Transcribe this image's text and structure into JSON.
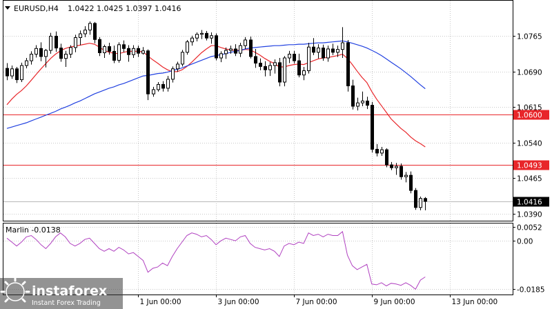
{
  "chart_data": [
    {
      "type": "candlestick",
      "symbol": "EURUSD,H4",
      "ohlc_header": {
        "open": "1.0422",
        "high": "1.0425",
        "low": "1.0397",
        "close": "1.0416"
      },
      "ylim": [
        1.0375,
        1.084
      ],
      "y_tick_labels": [
        "1.0765",
        "1.0690",
        "1.0615",
        "1.0540",
        "1.0465",
        "1.0390"
      ],
      "y_tick_values": [
        1.0765,
        1.069,
        1.0615,
        1.054,
        1.0465,
        1.039
      ],
      "x_tick_labels": [
        "1 Jun 00:00",
        "3 Jun 00:00",
        "7 Jun 00:00",
        "9 Jun 00:00",
        "13 Jun 00:00"
      ],
      "x_tick_bar_index": [
        27,
        43,
        59,
        75,
        91
      ],
      "horizontal_levels": [
        {
          "value": 1.06,
          "label": "1.0600",
          "color": "#e8262a"
        },
        {
          "value": 1.0493,
          "label": "1.0493",
          "color": "#e8262a"
        }
      ],
      "current_price": {
        "value": 1.0416,
        "label": "1.0416",
        "color": "#000000"
      },
      "candles": [
        [
          1.0697,
          1.0708,
          1.0672,
          1.0681
        ],
        [
          1.0681,
          1.0703,
          1.0675,
          1.0696
        ],
        [
          1.0696,
          1.07,
          1.0666,
          1.0673
        ],
        [
          1.0673,
          1.0709,
          1.0668,
          1.0703
        ],
        [
          1.0703,
          1.0719,
          1.0697,
          1.0713
        ],
        [
          1.0713,
          1.0733,
          1.0705,
          1.0727
        ],
        [
          1.0727,
          1.0746,
          1.072,
          1.0739
        ],
        [
          1.0739,
          1.0752,
          1.0712,
          1.0722
        ],
        [
          1.0722,
          1.0738,
          1.0699,
          1.0735
        ],
        [
          1.0735,
          1.0772,
          1.0728,
          1.0765
        ],
        [
          1.0765,
          1.0775,
          1.0732,
          1.074
        ],
        [
          1.074,
          1.0749,
          1.0711,
          1.0718
        ],
        [
          1.0718,
          1.0734,
          1.07,
          1.0727
        ],
        [
          1.0727,
          1.0746,
          1.0719,
          1.0741
        ],
        [
          1.0741,
          1.0768,
          1.0731,
          1.0762
        ],
        [
          1.0762,
          1.0777,
          1.0746,
          1.077
        ],
        [
          1.077,
          1.0786,
          1.0763,
          1.0778
        ],
        [
          1.0778,
          1.0796,
          1.0768,
          1.0792
        ],
        [
          1.0792,
          1.0795,
          1.075,
          1.0758
        ],
        [
          1.0758,
          1.0763,
          1.0723,
          1.073
        ],
        [
          1.073,
          1.0747,
          1.0719,
          1.0743
        ],
        [
          1.0743,
          1.0751,
          1.0726,
          1.0733
        ],
        [
          1.0733,
          1.0745,
          1.0708,
          1.0714
        ],
        [
          1.0714,
          1.0752,
          1.0709,
          1.0747
        ],
        [
          1.0747,
          1.0756,
          1.0731,
          1.0739
        ],
        [
          1.0739,
          1.0746,
          1.0711,
          1.0726
        ],
        [
          1.0726,
          1.0746,
          1.0719,
          1.0739
        ],
        [
          1.0739,
          1.0745,
          1.0721,
          1.0729
        ],
        [
          1.0729,
          1.0742,
          1.0726,
          1.0734
        ],
        [
          1.0734,
          1.0737,
          1.063,
          1.0643
        ],
        [
          1.0643,
          1.0658,
          1.0637,
          1.0652
        ],
        [
          1.0652,
          1.0668,
          1.0648,
          1.0663
        ],
        [
          1.0663,
          1.067,
          1.0648,
          1.0655
        ],
        [
          1.0655,
          1.0681,
          1.0648,
          1.0674
        ],
        [
          1.0674,
          1.0701,
          1.0667,
          1.0696
        ],
        [
          1.0696,
          1.0711,
          1.069,
          1.0706
        ],
        [
          1.0706,
          1.0736,
          1.0701,
          1.0731
        ],
        [
          1.0731,
          1.0757,
          1.0726,
          1.0753
        ],
        [
          1.0753,
          1.0766,
          1.0745,
          1.0761
        ],
        [
          1.0761,
          1.0773,
          1.0754,
          1.0769
        ],
        [
          1.0769,
          1.0778,
          1.0759,
          1.0771
        ],
        [
          1.0771,
          1.0776,
          1.0756,
          1.0761
        ],
        [
          1.0761,
          1.0773,
          1.0749,
          1.0766
        ],
        [
          1.0766,
          1.0771,
          1.0714,
          1.0719
        ],
        [
          1.0719,
          1.0733,
          1.071,
          1.0728
        ],
        [
          1.0728,
          1.0741,
          1.0717,
          1.0735
        ],
        [
          1.0735,
          1.0745,
          1.0728,
          1.0738
        ],
        [
          1.0738,
          1.0748,
          1.0723,
          1.0729
        ],
        [
          1.0729,
          1.0751,
          1.0721,
          1.0745
        ],
        [
          1.0745,
          1.0763,
          1.0738,
          1.0757
        ],
        [
          1.0757,
          1.0764,
          1.0718,
          1.0722
        ],
        [
          1.0722,
          1.0738,
          1.0698,
          1.0708
        ],
        [
          1.0708,
          1.0718,
          1.0693,
          1.0701
        ],
        [
          1.0701,
          1.0712,
          1.068,
          1.0694
        ],
        [
          1.0694,
          1.071,
          1.0681,
          1.0703
        ],
        [
          1.0703,
          1.0716,
          1.0686,
          1.0709
        ],
        [
          1.0709,
          1.0719,
          1.0659,
          1.0668
        ],
        [
          1.0668,
          1.0723,
          1.0659,
          1.0719
        ],
        [
          1.0719,
          1.0734,
          1.0708,
          1.0727
        ],
        [
          1.0727,
          1.0734,
          1.0707,
          1.0713
        ],
        [
          1.0713,
          1.0728,
          1.0678,
          1.0683
        ],
        [
          1.0683,
          1.07,
          1.0672,
          1.0692
        ],
        [
          1.0692,
          1.0751,
          1.0686,
          1.0742
        ],
        [
          1.0742,
          1.0761,
          1.0725,
          1.0731
        ],
        [
          1.0731,
          1.0748,
          1.0718,
          1.074
        ],
        [
          1.074,
          1.0747,
          1.0713,
          1.0719
        ],
        [
          1.0719,
          1.0745,
          1.0711,
          1.0738
        ],
        [
          1.0738,
          1.0749,
          1.0725,
          1.0731
        ],
        [
          1.0731,
          1.0745,
          1.0721,
          1.0737
        ],
        [
          1.0737,
          1.0784,
          1.0719,
          1.0751
        ],
        [
          1.0751,
          1.0757,
          1.0648,
          1.066
        ],
        [
          1.066,
          1.0673,
          1.061,
          1.0617
        ],
        [
          1.0617,
          1.0635,
          1.0608,
          1.0624
        ],
        [
          1.0624,
          1.0648,
          1.0617,
          1.0628
        ],
        [
          1.0628,
          1.0637,
          1.0611,
          1.0619
        ],
        [
          1.0619,
          1.0626,
          1.0519,
          1.0526
        ],
        [
          1.0526,
          1.0537,
          1.0511,
          1.0518
        ],
        [
          1.0518,
          1.0531,
          1.0512,
          1.0525
        ],
        [
          1.0525,
          1.0528,
          1.0488,
          1.0493
        ],
        [
          1.0493,
          1.0499,
          1.0482,
          1.0487
        ],
        [
          1.0487,
          1.0497,
          1.0472,
          1.049
        ],
        [
          1.049,
          1.0496,
          1.0462,
          1.0468
        ],
        [
          1.0468,
          1.0478,
          1.0456,
          1.0471
        ],
        [
          1.0471,
          1.0479,
          1.0433,
          1.0439
        ],
        [
          1.0439,
          1.0444,
          1.0398,
          1.0403
        ],
        [
          1.0403,
          1.0426,
          1.0397,
          1.0422
        ],
        [
          1.0422,
          1.0425,
          1.0397,
          1.0416
        ]
      ],
      "series": [
        {
          "color": "#e8262a",
          "values": [
            1.062,
            1.0632,
            1.0642,
            1.065,
            1.066,
            1.0672,
            1.0684,
            1.0696,
            1.0707,
            1.0718,
            1.0727,
            1.0734,
            1.0739,
            1.0742,
            1.0744,
            1.0746,
            1.0748,
            1.075,
            1.0748,
            1.0742,
            1.0735,
            1.0731,
            1.0729,
            1.0728,
            1.0731,
            1.0733,
            1.0733,
            1.0733,
            1.0732,
            1.0723,
            1.0715,
            1.0708,
            1.07,
            1.0694,
            1.069,
            1.069,
            1.0694,
            1.0701,
            1.071,
            1.072,
            1.073,
            1.0738,
            1.0745,
            1.0745,
            1.0741,
            1.0738,
            1.0736,
            1.0735,
            1.0735,
            1.0737,
            1.0736,
            1.0731,
            1.0725,
            1.0718,
            1.0712,
            1.0707,
            1.07,
            1.07,
            1.0703,
            1.0705,
            1.0706,
            1.0705,
            1.0709,
            1.0713,
            1.0717,
            1.0719,
            1.072,
            1.0722,
            1.0724,
            1.0727,
            1.0718,
            1.0705,
            1.0691,
            1.0678,
            1.0667,
            1.0648,
            1.0632,
            1.0618,
            1.0604,
            1.059,
            1.058,
            1.057,
            1.0562,
            1.0552,
            1.0544,
            1.0538,
            1.0531
          ]
        },
        {
          "color": "#2040e0",
          "values": [
            1.057,
            1.0573,
            1.0576,
            1.0579,
            1.0582,
            1.0586,
            1.059,
            1.0594,
            1.0598,
            1.0602,
            1.0606,
            1.0611,
            1.0615,
            1.0619,
            1.0624,
            1.0628,
            1.0633,
            1.0638,
            1.0643,
            1.0647,
            1.0651,
            1.0655,
            1.0658,
            1.0662,
            1.0665,
            1.0669,
            1.0673,
            1.0677,
            1.0681,
            1.0682,
            1.0684,
            1.0686,
            1.0687,
            1.0689,
            1.0692,
            1.0695,
            1.0698,
            1.0702,
            1.0706,
            1.071,
            1.0714,
            1.0718,
            1.0722,
            1.0724,
            1.0726,
            1.0728,
            1.0731,
            1.0733,
            1.0735,
            1.0738,
            1.074,
            1.0741,
            1.0742,
            1.0743,
            1.0744,
            1.0745,
            1.0745,
            1.0746,
            1.0747,
            1.0747,
            1.0748,
            1.0748,
            1.0749,
            1.075,
            1.0751,
            1.0751,
            1.0752,
            1.0753,
            1.0754,
            1.0755,
            1.0753,
            1.075,
            1.0747,
            1.0744,
            1.074,
            1.0735,
            1.073,
            1.0724,
            1.0717,
            1.071,
            1.0703,
            1.0696,
            1.0688,
            1.068,
            1.0671,
            1.0662,
            1.0654
          ]
        }
      ]
    },
    {
      "type": "line",
      "name_label": "Marlin -0.0138",
      "ylim": [
        -0.0205,
        0.0066
      ],
      "y_tick_labels": [
        "0.0052",
        "0.00",
        "-0.0185"
      ],
      "y_tick_values": [
        0.0052,
        0.0,
        -0.0185
      ],
      "series": [
        {
          "color": "#b040c0",
          "values": [
            0.001,
            -0.0005,
            -0.002,
            -0.0005,
            0.0015,
            0.002,
            0.0005,
            -0.0015,
            -0.003,
            -0.001,
            0.0015,
            0.003,
            0.0015,
            -0.001,
            -0.002,
            -0.001,
            0.0005,
            0.001,
            -0.001,
            -0.003,
            -0.004,
            -0.003,
            -0.004,
            -0.0025,
            -0.0035,
            -0.005,
            -0.0045,
            -0.006,
            -0.0075,
            -0.012,
            -0.0105,
            -0.01,
            -0.0085,
            -0.0095,
            -0.006,
            -0.003,
            -0.0005,
            0.002,
            0.003,
            0.0025,
            0.0015,
            0.002,
            0.0005,
            -0.0015,
            0.0,
            0.001,
            0.0005,
            0.0,
            0.0015,
            0.002,
            -0.001,
            -0.0025,
            -0.003,
            -0.0035,
            -0.003,
            -0.004,
            -0.006,
            -0.002,
            -0.001,
            -0.0015,
            -0.0005,
            -0.001,
            0.003,
            0.002,
            0.0025,
            0.0015,
            0.0025,
            0.002,
            0.002,
            0.0035,
            -0.0055,
            -0.0095,
            -0.011,
            -0.01,
            -0.009,
            -0.0165,
            -0.0168,
            -0.016,
            -0.0172,
            -0.0162,
            -0.0165,
            -0.017,
            -0.016,
            -0.017,
            -0.0185,
            -0.015,
            -0.0138
          ]
        }
      ]
    }
  ],
  "watermark": {
    "brand": "instaforex",
    "tagline": "Instant Forex Trading"
  },
  "colors": {
    "bull": "#ffffff",
    "bear": "#000000",
    "grid": "#c8c8c8",
    "level": "#e8262a"
  }
}
